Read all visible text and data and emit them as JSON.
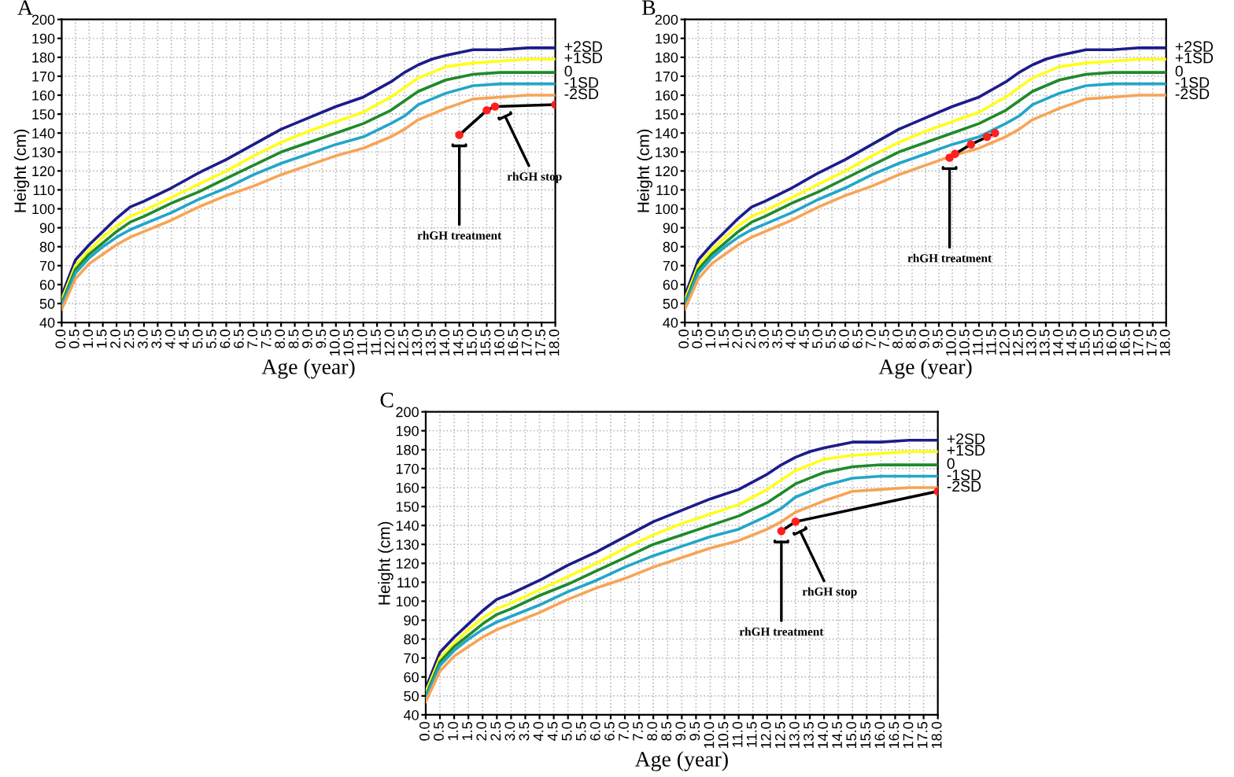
{
  "chart_data": [
    {
      "type": "line",
      "title": "A",
      "xlabel": "Age (year)",
      "ylabel": "Height (cm)",
      "x": [
        0,
        0.5,
        1,
        1.5,
        2,
        2.5,
        3,
        4,
        5,
        6,
        7,
        8,
        9,
        10,
        11,
        12,
        12.5,
        13,
        13.5,
        14,
        15,
        16,
        17,
        18
      ],
      "xlim": [
        0,
        18
      ],
      "ylim": [
        40,
        200
      ],
      "xticks": [
        {
          "value": 0,
          "label": "0.0"
        },
        0.5,
        {
          "value": 1,
          "label": "1.0"
        },
        1.5,
        {
          "value": 2,
          "label": "2.0"
        },
        2.5,
        {
          "value": 3,
          "label": "3.0"
        },
        3.5,
        {
          "value": 4,
          "label": "4.0"
        },
        4.5,
        {
          "value": 5,
          "label": "5.0"
        },
        5.5,
        {
          "value": 6,
          "label": "6.0"
        },
        6.5,
        {
          "value": 7,
          "label": "7.0"
        },
        7.5,
        {
          "value": 8,
          "label": "8.0"
        },
        8.5,
        {
          "value": 9,
          "label": "9.0"
        },
        9.5,
        {
          "value": 10,
          "label": "10.0"
        },
        10.5,
        {
          "value": 11,
          "label": "11.0"
        },
        11.5,
        {
          "value": 12,
          "label": "12.0"
        },
        12.5,
        {
          "value": 13,
          "label": "13.0"
        },
        13.5,
        {
          "value": 14,
          "label": "14.0"
        },
        14.5,
        {
          "value": 15,
          "label": "15.0"
        },
        15.5,
        {
          "value": 16,
          "label": "16.0"
        },
        16.5,
        {
          "value": 17,
          "label": "17.0"
        },
        17.5,
        {
          "value": 18,
          "label": "18.0"
        }
      ],
      "yticks": [
        40,
        50,
        60,
        70,
        80,
        90,
        100,
        110,
        120,
        130,
        140,
        150,
        160,
        170,
        180,
        190,
        200
      ],
      "grid": true,
      "line_style": "solid",
      "series": [
        {
          "name": "+2SD",
          "color": "#1c1c8a",
          "values": [
            54,
            73,
            81,
            88,
            95,
            101,
            104,
            111,
            119,
            126,
            134,
            142,
            148,
            154,
            159,
            167,
            172,
            176,
            179,
            181,
            184,
            184,
            185,
            185
          ]
        },
        {
          "name": "+1SD",
          "color": "#ffff1a",
          "values": [
            52,
            70,
            78,
            85,
            91,
            96,
            99,
            106,
            113,
            120,
            128,
            135,
            141,
            146,
            151,
            159,
            164,
            169,
            172,
            175,
            177,
            178,
            179,
            179
          ]
        },
        {
          "name": "0",
          "color": "#1f8a2a",
          "values": [
            50,
            68,
            76,
            82,
            88,
            93,
            96,
            103,
            109,
            116,
            123,
            130,
            135,
            140,
            145,
            152,
            157,
            162,
            165,
            168,
            171,
            172,
            172,
            172
          ]
        },
        {
          "name": "-1SD",
          "color": "#22a6c8",
          "values": [
            49,
            66,
            74,
            80,
            85,
            89,
            92,
            98,
            105,
            111,
            118,
            124,
            129,
            134,
            138,
            145,
            149,
            155,
            158,
            161,
            165,
            166,
            166,
            166
          ]
        },
        {
          "name": "-2SD",
          "color": "#f7a455",
          "values": [
            47,
            63,
            71,
            76,
            81,
            85,
            88,
            94,
            101,
            107,
            112,
            118,
            123,
            128,
            132,
            138,
            142,
            147,
            150,
            153,
            158,
            159,
            160,
            160
          ]
        },
        {
          "type": "line",
          "color": "#000000",
          "x": [
            14.5,
            15.5,
            15.8,
            18
          ],
          "values": [
            139,
            152,
            154,
            155
          ]
        },
        {
          "type": "scatter",
          "color": "#ff2020",
          "marker": "circle",
          "x": [
            14.5,
            15.5,
            15.8,
            18
          ],
          "values": [
            139,
            152,
            154,
            155
          ]
        }
      ],
      "annotations": [
        {
          "text": "rhGH treatment",
          "x": 14.5,
          "y": 139
        },
        {
          "text": "rhGH stop",
          "x": 16,
          "y": 154
        }
      ]
    },
    {
      "type": "line",
      "title": "B",
      "xlabel": "Age (year)",
      "ylabel": "Height (cm)",
      "x": [
        0,
        0.5,
        1,
        1.5,
        2,
        2.5,
        3,
        4,
        5,
        6,
        7,
        8,
        9,
        10,
        11,
        12,
        12.5,
        13,
        13.5,
        14,
        15,
        16,
        17,
        18
      ],
      "xlim": [
        0,
        18
      ],
      "ylim": [
        40,
        200
      ],
      "xticks": [
        {
          "value": 0,
          "label": "0.0"
        },
        0.5,
        {
          "value": 1,
          "label": "1.0"
        },
        1.5,
        {
          "value": 2,
          "label": "2.0"
        },
        2.5,
        {
          "value": 3,
          "label": "3.0"
        },
        3.5,
        {
          "value": 4,
          "label": "4.0"
        },
        4.5,
        {
          "value": 5,
          "label": "5.0"
        },
        5.5,
        {
          "value": 6,
          "label": "6.0"
        },
        6.5,
        {
          "value": 7,
          "label": "7.0"
        },
        7.5,
        {
          "value": 8,
          "label": "8.0"
        },
        8.5,
        {
          "value": 9,
          "label": "9.0"
        },
        9.5,
        {
          "value": 10,
          "label": "10.0"
        },
        10.5,
        {
          "value": 11,
          "label": "11.0"
        },
        11.5,
        {
          "value": 12,
          "label": "12.0"
        },
        12.5,
        {
          "value": 13,
          "label": "13.0"
        },
        13.5,
        {
          "value": 14,
          "label": "14.0"
        },
        14.5,
        {
          "value": 15,
          "label": "15.0"
        },
        15.5,
        {
          "value": 16,
          "label": "16.0"
        },
        16.5,
        {
          "value": 17,
          "label": "17.0"
        },
        17.5,
        {
          "value": 18,
          "label": "18.0"
        }
      ],
      "yticks": [
        40,
        50,
        60,
        70,
        80,
        90,
        100,
        110,
        120,
        130,
        140,
        150,
        160,
        170,
        180,
        190,
        200
      ],
      "grid": true,
      "line_style": "solid",
      "series": [
        {
          "name": "+2SD",
          "color": "#1c1c8a",
          "values": [
            54,
            73,
            81,
            88,
            95,
            101,
            104,
            111,
            119,
            126,
            134,
            142,
            148,
            154,
            159,
            167,
            172,
            176,
            179,
            181,
            184,
            184,
            185,
            185
          ]
        },
        {
          "name": "+1SD",
          "color": "#ffff1a",
          "values": [
            52,
            70,
            78,
            85,
            91,
            96,
            99,
            106,
            113,
            120,
            128,
            135,
            141,
            146,
            151,
            159,
            164,
            169,
            172,
            175,
            177,
            178,
            179,
            179
          ]
        },
        {
          "name": "0",
          "color": "#1f8a2a",
          "values": [
            50,
            68,
            76,
            82,
            88,
            93,
            96,
            103,
            109,
            116,
            123,
            130,
            135,
            140,
            145,
            152,
            157,
            162,
            165,
            168,
            171,
            172,
            172,
            172
          ]
        },
        {
          "name": "-1SD",
          "color": "#22a6c8",
          "values": [
            49,
            66,
            74,
            80,
            85,
            89,
            92,
            98,
            105,
            111,
            118,
            124,
            129,
            134,
            138,
            145,
            149,
            155,
            158,
            161,
            165,
            166,
            166,
            166
          ]
        },
        {
          "name": "-2SD",
          "color": "#f7a455",
          "values": [
            47,
            63,
            71,
            76,
            81,
            85,
            88,
            94,
            101,
            107,
            112,
            118,
            123,
            128,
            132,
            138,
            142,
            147,
            150,
            153,
            158,
            159,
            160,
            160
          ]
        },
        {
          "type": "line",
          "color": "#000000",
          "x": [
            10.1,
            10.7,
            11.3,
            11.6
          ],
          "values": [
            129,
            134,
            138,
            140
          ]
        },
        {
          "type": "scatter",
          "color": "#ff2020",
          "marker": "circle",
          "x": [
            9.9,
            10.1,
            10.7,
            11.3,
            11.6
          ],
          "values": [
            127,
            129,
            134,
            138,
            140
          ]
        }
      ],
      "annotations": [
        {
          "text": "rhGH treatment",
          "x": 9.9,
          "y": 127
        }
      ]
    },
    {
      "type": "line",
      "title": "C",
      "xlabel": "Age (year)",
      "ylabel": "Height (cm)",
      "x": [
        0,
        0.5,
        1,
        1.5,
        2,
        2.5,
        3,
        4,
        5,
        6,
        7,
        8,
        9,
        10,
        11,
        12,
        12.5,
        13,
        13.5,
        14,
        15,
        16,
        17,
        18
      ],
      "xlim": [
        0,
        18
      ],
      "ylim": [
        40,
        200
      ],
      "xticks": [
        {
          "value": 0,
          "label": "0.0"
        },
        0.5,
        {
          "value": 1,
          "label": "1.0"
        },
        1.5,
        {
          "value": 2,
          "label": "2.0"
        },
        2.5,
        {
          "value": 3,
          "label": "3.0"
        },
        3.5,
        {
          "value": 4,
          "label": "4.0"
        },
        4.5,
        {
          "value": 5,
          "label": "5.0"
        },
        5.5,
        {
          "value": 6,
          "label": "6.0"
        },
        6.5,
        {
          "value": 7,
          "label": "7.0"
        },
        7.5,
        {
          "value": 8,
          "label": "8.0"
        },
        8.5,
        {
          "value": 9,
          "label": "9.0"
        },
        9.5,
        {
          "value": 10,
          "label": "10.0"
        },
        10.5,
        {
          "value": 11,
          "label": "11.0"
        },
        11.5,
        {
          "value": 12,
          "label": "12.0"
        },
        12.5,
        {
          "value": 13,
          "label": "13.0"
        },
        13.5,
        {
          "value": 14,
          "label": "14.0"
        },
        14.5,
        {
          "value": 15,
          "label": "15.0"
        },
        15.5,
        {
          "value": 16,
          "label": "16.0"
        },
        16.5,
        {
          "value": 17,
          "label": "17.0"
        },
        17.5,
        {
          "value": 18,
          "label": "18.0"
        }
      ],
      "yticks": [
        40,
        50,
        60,
        70,
        80,
        90,
        100,
        110,
        120,
        130,
        140,
        150,
        160,
        170,
        180,
        190,
        200
      ],
      "grid": true,
      "line_style": "solid",
      "series": [
        {
          "name": "+2SD",
          "color": "#1c1c8a",
          "values": [
            54,
            73,
            81,
            88,
            95,
            101,
            104,
            111,
            119,
            126,
            134,
            142,
            148,
            154,
            159,
            167,
            172,
            176,
            179,
            181,
            184,
            184,
            185,
            185
          ]
        },
        {
          "name": "+1SD",
          "color": "#ffff1a",
          "values": [
            52,
            70,
            78,
            85,
            91,
            96,
            99,
            106,
            113,
            120,
            128,
            135,
            141,
            146,
            151,
            159,
            164,
            169,
            172,
            175,
            177,
            178,
            179,
            179
          ]
        },
        {
          "name": "0",
          "color": "#1f8a2a",
          "values": [
            50,
            68,
            76,
            82,
            88,
            93,
            96,
            103,
            109,
            116,
            123,
            130,
            135,
            140,
            145,
            152,
            157,
            162,
            165,
            168,
            171,
            172,
            172,
            172
          ]
        },
        {
          "name": "-1SD",
          "color": "#22a6c8",
          "values": [
            49,
            66,
            74,
            80,
            85,
            89,
            92,
            98,
            105,
            111,
            118,
            124,
            129,
            134,
            138,
            145,
            149,
            155,
            158,
            161,
            165,
            166,
            166,
            166
          ]
        },
        {
          "name": "-2SD",
          "color": "#f7a455",
          "values": [
            47,
            63,
            71,
            76,
            81,
            85,
            88,
            94,
            101,
            107,
            112,
            118,
            123,
            128,
            132,
            138,
            142,
            147,
            150,
            153,
            158,
            159,
            160,
            160
          ]
        },
        {
          "type": "line",
          "color": "#000000",
          "x": [
            12.5,
            13,
            18
          ],
          "values": [
            137,
            142,
            158
          ]
        },
        {
          "type": "scatter",
          "color": "#ff2020",
          "marker": "circle",
          "x": [
            12.5,
            13,
            18
          ],
          "values": [
            137,
            142,
            158
          ]
        }
      ],
      "annotations": [
        {
          "text": "rhGH treatment",
          "x": 12.5,
          "y": 137
        },
        {
          "text": "rhGH stop",
          "x": 13,
          "y": 142
        }
      ]
    }
  ]
}
